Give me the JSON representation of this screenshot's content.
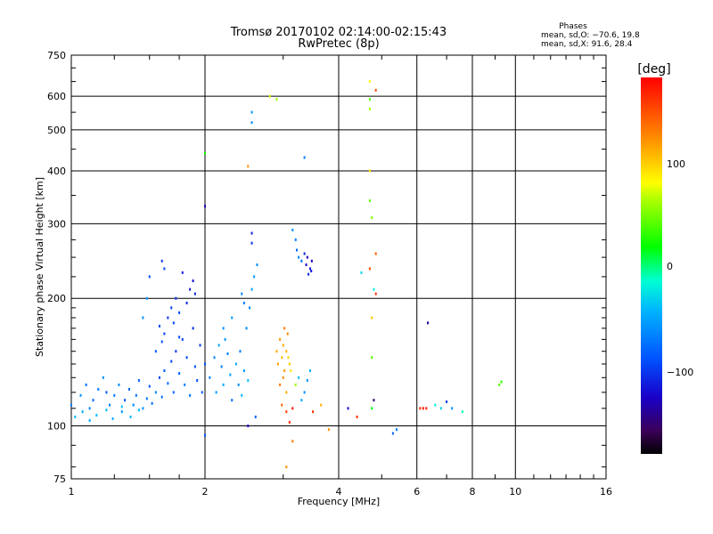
{
  "header": {
    "title_line1": "Tromsø 20170102 02:14:00-02:15:43",
    "title_line2": "RwPretec (8p)",
    "phases_title": "Phases",
    "phases_o": "mean, sd,O: −70.6, 19.8",
    "phases_x": "mean, sd,X:  91.6, 28.4"
  },
  "colorbar": {
    "label": "[deg]",
    "ticks": [
      "100",
      "0",
      "−100"
    ]
  },
  "chart_data": {
    "type": "scatter",
    "title": "Tromsø 20170102 02:14:00-02:15:43",
    "subtitle": "RwPretec (8p)",
    "xlabel": "Frequency [MHz]",
    "ylabel": "Stationary phase Virtual Height [km]",
    "xscale": "log2",
    "yscale": "log",
    "xlim": [
      1,
      16
    ],
    "ylim": [
      75,
      750
    ],
    "x_ticks": [
      "1",
      "2",
      "4",
      "6",
      "8",
      "10",
      "16"
    ],
    "y_ticks": [
      "75",
      "100",
      "200",
      "300",
      "400",
      "500",
      "600",
      "750"
    ],
    "colorbar_range": [
      -180,
      180
    ],
    "points": [
      [
        1.0,
        112,
        -70
      ],
      [
        1.05,
        118,
        -60
      ],
      [
        1.08,
        125,
        -75
      ],
      [
        1.1,
        110,
        -65
      ],
      [
        1.12,
        115,
        -80
      ],
      [
        1.15,
        122,
        -70
      ],
      [
        1.18,
        130,
        -60
      ],
      [
        1.2,
        120,
        -85
      ],
      [
        1.22,
        112,
        -68
      ],
      [
        1.25,
        118,
        -72
      ],
      [
        1.28,
        125,
        -62
      ],
      [
        1.3,
        108,
        -58
      ],
      [
        1.32,
        115,
        -90
      ],
      [
        1.35,
        122,
        -78
      ],
      [
        1.38,
        112,
        -66
      ],
      [
        1.4,
        118,
        -74
      ],
      [
        1.42,
        128,
        -82
      ],
      [
        1.45,
        110,
        -60
      ],
      [
        1.48,
        116,
        -70
      ],
      [
        1.5,
        124,
        -88
      ],
      [
        1.52,
        113,
        -76
      ],
      [
        1.55,
        120,
        -64
      ],
      [
        1.58,
        130,
        -94
      ],
      [
        1.6,
        117,
        -72
      ],
      [
        1.62,
        135,
        -86
      ],
      [
        1.65,
        126,
        -78
      ],
      [
        1.68,
        142,
        -92
      ],
      [
        1.7,
        120,
        -80
      ],
      [
        1.72,
        150,
        -100
      ],
      [
        1.75,
        133,
        -84
      ],
      [
        1.78,
        160,
        -96
      ],
      [
        1.8,
        125,
        -70
      ],
      [
        1.82,
        145,
        -90
      ],
      [
        1.85,
        118,
        -76
      ],
      [
        1.88,
        170,
        -104
      ],
      [
        1.9,
        138,
        -86
      ],
      [
        1.92,
        128,
        -92
      ],
      [
        1.95,
        155,
        -98
      ],
      [
        1.97,
        120,
        -82
      ],
      [
        2.0,
        140,
        -88
      ],
      [
        1.62,
        165,
        -95
      ],
      [
        1.65,
        180,
        -100
      ],
      [
        1.68,
        190,
        -98
      ],
      [
        1.7,
        175,
        -92
      ],
      [
        1.72,
        200,
        -102
      ],
      [
        1.75,
        185,
        -96
      ],
      [
        1.6,
        158,
        -90
      ],
      [
        1.58,
        172,
        -94
      ],
      [
        1.55,
        150,
        -86
      ],
      [
        1.82,
        195,
        -108
      ],
      [
        1.85,
        210,
        -115
      ],
      [
        1.88,
        220,
        -120
      ],
      [
        1.9,
        205,
        -110
      ],
      [
        1.78,
        230,
        -112
      ],
      [
        1.6,
        245,
        -100
      ],
      [
        1.62,
        235,
        -95
      ],
      [
        1.5,
        225,
        -90
      ],
      [
        1.48,
        200,
        -55
      ],
      [
        1.45,
        180,
        -60
      ],
      [
        1.75,
        162,
        -92
      ],
      [
        2.05,
        130,
        -70
      ],
      [
        2.1,
        145,
        -60
      ],
      [
        2.12,
        120,
        -55
      ],
      [
        2.15,
        155,
        -50
      ],
      [
        2.18,
        138,
        -65
      ],
      [
        2.2,
        125,
        -45
      ],
      [
        2.22,
        160,
        -58
      ],
      [
        2.25,
        148,
        -68
      ],
      [
        2.28,
        132,
        -52
      ],
      [
        2.3,
        115,
        -75
      ],
      [
        2.35,
        140,
        -48
      ],
      [
        2.38,
        125,
        -62
      ],
      [
        2.4,
        150,
        -70
      ],
      [
        2.42,
        118,
        -44
      ],
      [
        2.45,
        135,
        -56
      ],
      [
        2.48,
        170,
        -60
      ],
      [
        2.5,
        128,
        -40
      ],
      [
        2.52,
        190,
        -65
      ],
      [
        2.55,
        210,
        -50
      ],
      [
        2.58,
        225,
        -55
      ],
      [
        2.62,
        240,
        -60
      ],
      [
        2.55,
        285,
        -110
      ],
      [
        2.55,
        270,
        -105
      ],
      [
        2.45,
        195,
        -70
      ],
      [
        2.42,
        205,
        -65
      ],
      [
        2.3,
        180,
        -55
      ],
      [
        2.2,
        170,
        -62
      ],
      [
        2.6,
        105,
        -80
      ],
      [
        2.5,
        100,
        -120
      ],
      [
        2.0,
        95,
        -90
      ],
      [
        2.0,
        440,
        20
      ],
      [
        2.0,
        330,
        -130
      ],
      [
        2.55,
        520,
        -60
      ],
      [
        2.55,
        550,
        -55
      ],
      [
        2.5,
        410,
        120
      ],
      [
        2.8,
        600,
        70
      ],
      [
        2.9,
        590,
        60
      ],
      [
        3.35,
        430,
        -70
      ],
      [
        2.9,
        150,
        110
      ],
      [
        2.92,
        140,
        115
      ],
      [
        2.95,
        160,
        120
      ],
      [
        2.98,
        145,
        105
      ],
      [
        3.0,
        155,
        112
      ],
      [
        3.02,
        135,
        118
      ],
      [
        3.05,
        150,
        108
      ],
      [
        3.07,
        165,
        125
      ],
      [
        3.1,
        140,
        100
      ],
      [
        2.95,
        125,
        130
      ],
      [
        3.0,
        130,
        122
      ],
      [
        3.05,
        120,
        110
      ],
      [
        3.08,
        145,
        95
      ],
      [
        3.12,
        135,
        90
      ],
      [
        3.02,
        170,
        130
      ],
      [
        2.98,
        112,
        140
      ],
      [
        3.05,
        108,
        150
      ],
      [
        3.1,
        102,
        160
      ],
      [
        3.15,
        110,
        170
      ],
      [
        3.2,
        125,
        60
      ],
      [
        3.25,
        130,
        -40
      ],
      [
        3.3,
        115,
        -50
      ],
      [
        3.35,
        120,
        -60
      ],
      [
        3.4,
        128,
        -55
      ],
      [
        3.45,
        135,
        -45
      ],
      [
        3.5,
        108,
        160
      ],
      [
        3.15,
        92,
        130
      ],
      [
        3.05,
        80,
        120
      ],
      [
        3.65,
        112,
        110
      ],
      [
        3.8,
        98,
        120
      ],
      [
        3.15,
        290,
        -60
      ],
      [
        3.2,
        275,
        -70
      ],
      [
        3.22,
        260,
        -80
      ],
      [
        3.25,
        250,
        -65
      ],
      [
        3.3,
        245,
        -75
      ],
      [
        3.35,
        255,
        -110
      ],
      [
        3.38,
        240,
        -120
      ],
      [
        3.4,
        250,
        -130
      ],
      [
        3.45,
        235,
        -115
      ],
      [
        3.42,
        228,
        -105
      ],
      [
        3.48,
        245,
        -125
      ],
      [
        3.47,
        232,
        -118
      ],
      [
        4.2,
        110,
        -120
      ],
      [
        4.4,
        105,
        160
      ],
      [
        4.5,
        230,
        -30
      ],
      [
        4.7,
        235,
        150
      ],
      [
        4.8,
        210,
        -20
      ],
      [
        4.85,
        255,
        140
      ],
      [
        4.75,
        310,
        50
      ],
      [
        4.7,
        340,
        40
      ],
      [
        4.7,
        400,
        90
      ],
      [
        4.7,
        560,
        60
      ],
      [
        4.7,
        590,
        40
      ],
      [
        4.7,
        650,
        80
      ],
      [
        4.85,
        620,
        150
      ],
      [
        4.75,
        180,
        100
      ],
      [
        4.75,
        145,
        40
      ],
      [
        4.75,
        110,
        20
      ],
      [
        4.85,
        205,
        160
      ],
      [
        4.8,
        115,
        -150
      ],
      [
        5.3,
        96,
        -80
      ],
      [
        5.4,
        98,
        -70
      ],
      [
        6.1,
        110,
        160
      ],
      [
        6.2,
        110,
        170
      ],
      [
        6.3,
        110,
        165
      ],
      [
        6.35,
        175,
        -140
      ],
      [
        6.6,
        112,
        -20
      ],
      [
        6.8,
        110,
        -30
      ],
      [
        7.0,
        114,
        -100
      ],
      [
        7.2,
        110,
        -60
      ],
      [
        7.6,
        108,
        -10
      ],
      [
        9.2,
        125,
        40
      ],
      [
        9.3,
        127,
        30
      ],
      [
        1.02,
        105,
        -40
      ],
      [
        1.06,
        108,
        -45
      ],
      [
        1.1,
        103,
        -50
      ],
      [
        1.14,
        106,
        -38
      ],
      [
        1.2,
        109,
        -42
      ],
      [
        1.24,
        104,
        -48
      ],
      [
        1.3,
        111,
        -36
      ],
      [
        1.36,
        105,
        -44
      ],
      [
        1.42,
        109,
        -40
      ]
    ]
  }
}
